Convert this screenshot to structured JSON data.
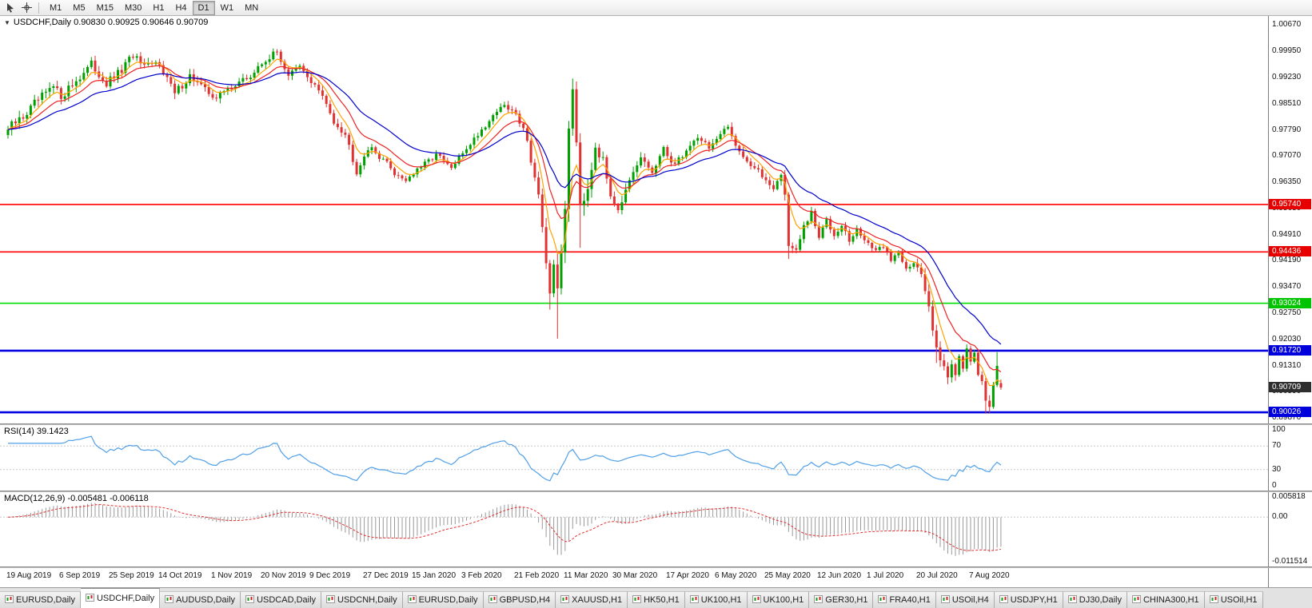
{
  "toolbar": {
    "icons": [
      {
        "name": "cursor-icon"
      },
      {
        "name": "crosshair-icon"
      }
    ],
    "timeframes": [
      {
        "label": "M1",
        "active": false
      },
      {
        "label": "M5",
        "active": false
      },
      {
        "label": "M15",
        "active": false
      },
      {
        "label": "M30",
        "active": false
      },
      {
        "label": "H1",
        "active": false
      },
      {
        "label": "H4",
        "active": false
      },
      {
        "label": "D1",
        "active": true
      },
      {
        "label": "W1",
        "active": false
      },
      {
        "label": "MN",
        "active": false
      }
    ]
  },
  "chart": {
    "header": "USDCHF,Daily 0.90830 0.90925 0.90646 0.90709"
  },
  "rsi": {
    "header": "RSI(14) 39.1423",
    "levels": [
      100,
      70,
      30,
      0
    ]
  },
  "macd": {
    "header": "MACD(12,26,9) -0.005481 -0.006118",
    "axis_labels": [
      {
        "label": "0.005818",
        "value": 0.005818
      },
      {
        "label": "0.00",
        "value": 0
      },
      {
        "label": "-0.011514",
        "value": -0.011514
      }
    ]
  },
  "price_axis": {
    "ticks": [
      "1.00670",
      "0.99950",
      "0.99230",
      "0.98510",
      "0.97790",
      "0.97070",
      "0.96350",
      "0.95630",
      "0.94910",
      "0.94190",
      "0.93470",
      "0.92750",
      "0.92030",
      "0.91310",
      "0.90590",
      "0.89870"
    ],
    "badges": [
      {
        "label": "0.95740",
        "price": 0.9574,
        "bg": "#e60000",
        "fg": "#ffffff"
      },
      {
        "label": "0.94436",
        "price": 0.94436,
        "bg": "#e60000",
        "fg": "#ffffff"
      },
      {
        "label": "0.93024",
        "price": 0.93024,
        "bg": "#00c400",
        "fg": "#ffffff"
      },
      {
        "label": "0.91720",
        "price": 0.9172,
        "bg": "#0000dd",
        "fg": "#ffffff"
      },
      {
        "label": "0.90709",
        "price": 0.90709,
        "bg": "#2e2e2e",
        "fg": "#ffffff"
      },
      {
        "label": "0.90026",
        "price": 0.90026,
        "bg": "#0000dd",
        "fg": "#ffffff"
      }
    ]
  },
  "hlines": [
    {
      "price": 0.9574,
      "color": "#ff0000",
      "w": 1.6
    },
    {
      "price": 0.94436,
      "color": "#ff0000",
      "w": 1.6
    },
    {
      "price": 0.93024,
      "color": "#00dd00",
      "w": 1.6
    },
    {
      "price": 0.9172,
      "color": "#0000e0",
      "w": 2.6
    },
    {
      "price": 0.90026,
      "color": "#0000e0",
      "w": 2.6
    }
  ],
  "date_axis": [
    {
      "label": "19 Aug 2019",
      "i": 0
    },
    {
      "label": "6 Sep 2019",
      "i": 14
    },
    {
      "label": "25 Sep 2019",
      "i": 27
    },
    {
      "label": "14 Oct 2019",
      "i": 40
    },
    {
      "label": "1 Nov 2019",
      "i": 54
    },
    {
      "label": "20 Nov 2019",
      "i": 67
    },
    {
      "label": "9 Dec 2019",
      "i": 80
    },
    {
      "label": "27 Dec 2019",
      "i": 94
    },
    {
      "label": "15 Jan 2020",
      "i": 107
    },
    {
      "label": "3 Feb 2020",
      "i": 120
    },
    {
      "label": "21 Feb 2020",
      "i": 134
    },
    {
      "label": "11 Mar 2020",
      "i": 147
    },
    {
      "label": "30 Mar 2020",
      "i": 160
    },
    {
      "label": "17 Apr 2020",
      "i": 174
    },
    {
      "label": "6 May 2020",
      "i": 187
    },
    {
      "label": "25 May 2020",
      "i": 200
    },
    {
      "label": "12 Jun 2020",
      "i": 214
    },
    {
      "label": "1 Jul 2020",
      "i": 227
    },
    {
      "label": "20 Jul 2020",
      "i": 240
    },
    {
      "label": "7 Aug 2020",
      "i": 254
    }
  ],
  "tabs": [
    {
      "label": "EURUSD,Daily",
      "active": false
    },
    {
      "label": "USDCHF,Daily",
      "active": true
    },
    {
      "label": "AUDUSD,Daily",
      "active": false
    },
    {
      "label": "USDCAD,Daily",
      "active": false
    },
    {
      "label": "USDCNH,Daily",
      "active": false
    },
    {
      "label": "EURUSD,Daily",
      "active": false
    },
    {
      "label": "GBPUSD,H4",
      "active": false
    },
    {
      "label": "XAUUSD,H1",
      "active": false
    },
    {
      "label": "HK50,H1",
      "active": false
    },
    {
      "label": "UK100,H1",
      "active": false
    },
    {
      "label": "UK100,H1",
      "active": false
    },
    {
      "label": "GER30,H1",
      "active": false
    },
    {
      "label": "FRA40,H1",
      "active": false
    },
    {
      "label": "USOil,H4",
      "active": false
    },
    {
      "label": "USDJPY,H1",
      "active": false
    },
    {
      "label": "DJ30,Daily",
      "active": false
    },
    {
      "label": "CHINA300,H1",
      "active": false
    },
    {
      "label": "USOil,H1",
      "active": false
    }
  ],
  "chart_data": {
    "type": "candlestick",
    "symbol": "USDCHF",
    "timeframe": "Daily",
    "x_range": [
      "19 Aug 2019",
      "21 Aug 2020"
    ],
    "ylim": [
      0.8972,
      1.0092
    ],
    "candle_count": 263,
    "last_candle": {
      "open": 0.9083,
      "high": 0.90925,
      "low": 0.90646,
      "close": 0.90709
    },
    "colors": {
      "up": "#00a000",
      "down": "#e03232",
      "rsi": "#4f9fe8",
      "macd_hist": "#999999",
      "macd_signal": "#e03030"
    },
    "moving_averages": [
      {
        "name": "ma-fast",
        "period": 6,
        "color": "#ffa200"
      },
      {
        "name": "ma-medium",
        "period": 13,
        "color": "#ee2222"
      },
      {
        "name": "ma-slow",
        "period": 27,
        "color": "#0000cc"
      }
    ],
    "horizontal_lines": [
      0.9574,
      0.94436,
      0.93024,
      0.9172,
      0.90026
    ],
    "price_path_anchors": [
      [
        0,
        0.978,
        0.003
      ],
      [
        4,
        0.9815,
        0.003
      ],
      [
        8,
        0.986,
        0.003
      ],
      [
        12,
        0.9895,
        0.0028
      ],
      [
        14,
        0.9872,
        0.0028
      ],
      [
        18,
        0.9915,
        0.0028
      ],
      [
        22,
        0.9958,
        0.0026
      ],
      [
        26,
        0.9905,
        0.0026
      ],
      [
        30,
        0.9942,
        0.0026
      ],
      [
        33,
        0.9985,
        0.0024
      ],
      [
        36,
        0.9948,
        0.0024
      ],
      [
        40,
        0.9965,
        0.0024
      ],
      [
        44,
        0.9878,
        0.0026
      ],
      [
        48,
        0.9928,
        0.0024
      ],
      [
        52,
        0.9888,
        0.0022
      ],
      [
        55,
        0.9868,
        0.0022
      ],
      [
        60,
        0.9905,
        0.002
      ],
      [
        64,
        0.9925,
        0.002
      ],
      [
        68,
        0.9972,
        0.002
      ],
      [
        71,
        0.9992,
        0.0022
      ],
      [
        74,
        0.993,
        0.0022
      ],
      [
        77,
        0.995,
        0.002
      ],
      [
        82,
        0.9888,
        0.002
      ],
      [
        86,
        0.9805,
        0.0022
      ],
      [
        89,
        0.9768,
        0.0022
      ],
      [
        92,
        0.9668,
        0.0026
      ],
      [
        95,
        0.973,
        0.0022
      ],
      [
        99,
        0.97,
        0.0018
      ],
      [
        102,
        0.966,
        0.0018
      ],
      [
        105,
        0.9642,
        0.0016
      ],
      [
        109,
        0.9676,
        0.0016
      ],
      [
        113,
        0.9712,
        0.0016
      ],
      [
        117,
        0.9672,
        0.0016
      ],
      [
        121,
        0.973,
        0.0018
      ],
      [
        126,
        0.9792,
        0.0018
      ],
      [
        130,
        0.9845,
        0.0018
      ],
      [
        133,
        0.9832,
        0.0018
      ],
      [
        136,
        0.979,
        0.0022
      ],
      [
        138,
        0.97,
        0.003
      ],
      [
        140,
        0.96,
        0.0036
      ],
      [
        142,
        0.939,
        0.005
      ],
      [
        143,
        0.933,
        0.005
      ],
      [
        144,
        0.941,
        0.005
      ],
      [
        145,
        0.936,
        0.006
      ],
      [
        146,
        0.942,
        0.006
      ],
      [
        147,
        0.956,
        0.006
      ],
      [
        148,
        0.98,
        0.006
      ],
      [
        149,
        0.9895,
        0.005
      ],
      [
        150,
        0.976,
        0.005
      ],
      [
        151,
        0.958,
        0.005
      ],
      [
        153,
        0.9625,
        0.004
      ],
      [
        155,
        0.974,
        0.0036
      ],
      [
        157,
        0.969,
        0.0032
      ],
      [
        159,
        0.9605,
        0.003
      ],
      [
        161,
        0.9565,
        0.0028
      ],
      [
        164,
        0.963,
        0.0026
      ],
      [
        167,
        0.97,
        0.0024
      ],
      [
        170,
        0.9662,
        0.0022
      ],
      [
        173,
        0.9722,
        0.0022
      ],
      [
        176,
        0.9685,
        0.0022
      ],
      [
        179,
        0.9722,
        0.002
      ],
      [
        182,
        0.9762,
        0.002
      ],
      [
        185,
        0.9732,
        0.002
      ],
      [
        188,
        0.9762,
        0.002
      ],
      [
        190,
        0.9785,
        0.002
      ],
      [
        193,
        0.9722,
        0.002
      ],
      [
        196,
        0.9682,
        0.002
      ],
      [
        199,
        0.9652,
        0.002
      ],
      [
        202,
        0.9622,
        0.002
      ],
      [
        204,
        0.9655,
        0.0022
      ],
      [
        205,
        0.96,
        0.0026
      ],
      [
        206,
        0.9468,
        0.0034
      ],
      [
        208,
        0.9442,
        0.0026
      ],
      [
        210,
        0.9512,
        0.0022
      ],
      [
        212,
        0.9548,
        0.002
      ],
      [
        214,
        0.9482,
        0.002
      ],
      [
        216,
        0.9532,
        0.0018
      ],
      [
        218,
        0.9492,
        0.0018
      ],
      [
        220,
        0.9522,
        0.0018
      ],
      [
        222,
        0.9472,
        0.0018
      ],
      [
        224,
        0.9502,
        0.0016
      ],
      [
        227,
        0.9468,
        0.0016
      ],
      [
        229,
        0.9442,
        0.0016
      ],
      [
        231,
        0.9462,
        0.0016
      ],
      [
        233,
        0.9422,
        0.0016
      ],
      [
        235,
        0.9442,
        0.0016
      ],
      [
        237,
        0.9402,
        0.0016
      ],
      [
        239,
        0.9412,
        0.0018
      ],
      [
        241,
        0.9378,
        0.0022
      ],
      [
        243,
        0.9292,
        0.003
      ],
      [
        245,
        0.9192,
        0.0036
      ],
      [
        247,
        0.9122,
        0.0036
      ],
      [
        248,
        0.9095,
        0.0032
      ],
      [
        249,
        0.9142,
        0.003
      ],
      [
        250,
        0.9112,
        0.0028
      ],
      [
        251,
        0.9162,
        0.0026
      ],
      [
        252,
        0.9132,
        0.0026
      ],
      [
        253,
        0.9176,
        0.0026
      ],
      [
        254,
        0.9132,
        0.0026
      ],
      [
        255,
        0.9156,
        0.0024
      ],
      [
        256,
        0.9112,
        0.0024
      ],
      [
        257,
        0.9086,
        0.0024
      ],
      [
        258,
        0.9042,
        0.0026
      ],
      [
        259,
        0.9022,
        0.0026
      ],
      [
        260,
        0.9082,
        0.0024
      ],
      [
        261,
        0.9122,
        0.0024
      ],
      [
        262,
        0.9071,
        0.002
      ]
    ],
    "wick_overrides": [
      {
        "i": 143,
        "low": 0.9285
      },
      {
        "i": 145,
        "low": 0.9205
      },
      {
        "i": 149,
        "high": 0.992
      },
      {
        "i": 151,
        "low": 0.9455
      },
      {
        "i": 206,
        "low": 0.9424
      },
      {
        "i": 245,
        "low": 0.9138
      },
      {
        "i": 258,
        "low": 0.8999
      },
      {
        "i": 259,
        "low": 0.9001
      },
      {
        "i": 261,
        "high": 0.9168
      }
    ],
    "rsi": {
      "period": 14,
      "current": 39.1423,
      "levels": [
        100,
        70,
        30,
        0
      ]
    },
    "macd": {
      "fast": 12,
      "slow": 26,
      "signal_period": 9,
      "current": [
        -0.005481,
        -0.006118
      ],
      "yticks": [
        0.005818,
        0,
        -0.011514
      ],
      "ymax": 0.0064,
      "ymin": -0.0126
    }
  }
}
